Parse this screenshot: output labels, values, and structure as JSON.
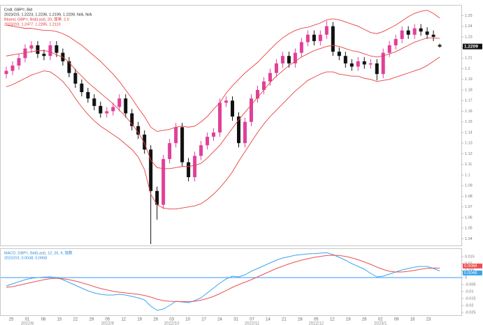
{
  "chart_data": [
    {
      "type": "candlestick",
      "legend_lines": [
        {
          "text": "Cndl, GBP=, Bid",
          "color": "#222222"
        },
        {
          "text": "2023/2/3, 1.2223, 1.2236, 1.2199, 1.2209, N/A, N/A",
          "color": "#222222"
        },
        {
          "text": "Bband, GBP=, Bid(Last), 20, 简单, 2.0",
          "color": "#e03030"
        },
        {
          "text": "2023/2/3, 1.2477, 1.2285, 1.2110",
          "color": "#e03030"
        }
      ],
      "up_color": "#e0409a",
      "down_color": "#111111",
      "open": [
        1.195,
        1.198,
        1.203,
        1.21,
        1.219,
        1.222,
        1.214,
        1.212,
        1.222,
        1.215,
        1.207,
        1.196,
        1.186,
        1.178,
        1.172,
        1.165,
        1.158,
        1.16,
        1.164,
        1.172,
        1.158,
        1.146,
        1.138,
        1.124,
        1.085,
        1.072,
        1.115,
        1.13,
        1.145,
        1.112,
        1.098,
        1.118,
        1.128,
        1.136,
        1.14,
        1.168,
        1.17,
        1.155,
        1.13,
        1.15,
        1.172,
        1.18,
        1.188,
        1.196,
        1.205,
        1.212,
        1.205,
        1.215,
        1.225,
        1.232,
        1.226,
        1.232,
        1.24,
        1.216,
        1.212,
        1.205,
        1.202,
        1.207,
        1.204,
        1.205,
        1.195,
        1.215,
        1.222,
        1.228,
        1.236,
        1.232,
        1.238,
        1.235,
        1.232,
        1.2223
      ],
      "high": [
        1.202,
        1.207,
        1.214,
        1.223,
        1.226,
        1.226,
        1.218,
        1.226,
        1.226,
        1.219,
        1.211,
        1.2,
        1.19,
        1.182,
        1.176,
        1.169,
        1.164,
        1.168,
        1.176,
        1.176,
        1.162,
        1.15,
        1.142,
        1.128,
        1.089,
        1.119,
        1.134,
        1.149,
        1.149,
        1.116,
        1.122,
        1.132,
        1.14,
        1.144,
        1.172,
        1.174,
        1.174,
        1.159,
        1.154,
        1.176,
        1.184,
        1.192,
        1.2,
        1.209,
        1.216,
        1.216,
        1.219,
        1.229,
        1.236,
        1.236,
        1.236,
        1.245,
        1.244,
        1.22,
        1.216,
        1.209,
        1.211,
        1.211,
        1.209,
        1.209,
        1.219,
        1.226,
        1.232,
        1.24,
        1.24,
        1.242,
        1.242,
        1.239,
        1.236,
        1.2236
      ],
      "low": [
        1.191,
        1.194,
        1.199,
        1.206,
        1.215,
        1.21,
        1.208,
        1.208,
        1.211,
        1.203,
        1.192,
        1.182,
        1.174,
        1.168,
        1.161,
        1.154,
        1.154,
        1.156,
        1.16,
        1.154,
        1.142,
        1.134,
        1.12,
        1.035,
        1.058,
        1.068,
        1.111,
        1.126,
        1.108,
        1.094,
        1.094,
        1.114,
        1.124,
        1.132,
        1.136,
        1.164,
        1.151,
        1.126,
        1.126,
        1.146,
        1.168,
        1.176,
        1.184,
        1.192,
        1.201,
        1.201,
        1.201,
        1.211,
        1.221,
        1.222,
        1.222,
        1.228,
        1.212,
        1.208,
        1.201,
        1.198,
        1.198,
        1.2,
        1.2,
        1.189,
        1.191,
        1.211,
        1.218,
        1.224,
        1.228,
        1.228,
        1.231,
        1.228,
        1.226,
        1.2199
      ],
      "close": [
        1.198,
        1.203,
        1.21,
        1.219,
        1.222,
        1.214,
        1.212,
        1.222,
        1.215,
        1.207,
        1.196,
        1.186,
        1.178,
        1.172,
        1.165,
        1.158,
        1.16,
        1.164,
        1.172,
        1.158,
        1.146,
        1.138,
        1.124,
        1.085,
        1.072,
        1.115,
        1.13,
        1.145,
        1.112,
        1.098,
        1.118,
        1.128,
        1.136,
        1.14,
        1.168,
        1.17,
        1.155,
        1.13,
        1.15,
        1.172,
        1.18,
        1.188,
        1.196,
        1.205,
        1.212,
        1.205,
        1.215,
        1.225,
        1.232,
        1.226,
        1.232,
        1.24,
        1.216,
        1.212,
        1.205,
        1.202,
        1.207,
        1.204,
        1.205,
        1.195,
        1.215,
        1.222,
        1.228,
        1.236,
        1.232,
        1.238,
        1.235,
        1.232,
        1.23,
        1.2209
      ],
      "bands": [
        {
          "color": "#e84040",
          "values": [
            1.241,
            1.24,
            1.239,
            1.238,
            1.238,
            1.237,
            1.236,
            1.236,
            1.235,
            1.233,
            1.23,
            1.226,
            1.222,
            1.217,
            1.212,
            1.207,
            1.201,
            1.195,
            1.188,
            1.18,
            1.172,
            1.163,
            1.155,
            1.145,
            1.141,
            1.142,
            1.143,
            1.145,
            1.146,
            1.145,
            1.146,
            1.15,
            1.155,
            1.162,
            1.168,
            1.177,
            1.184,
            1.19,
            1.196,
            1.201,
            1.206,
            1.212,
            1.218,
            1.224,
            1.229,
            1.233,
            1.236,
            1.238,
            1.239,
            1.241,
            1.243,
            1.246,
            1.247,
            1.246,
            1.244,
            1.242,
            1.24,
            1.237,
            1.234,
            1.233,
            1.235,
            1.238,
            1.241,
            1.245,
            1.249,
            1.252,
            1.254,
            1.255,
            1.252,
            1.2477
          ]
        },
        {
          "color": "#e84040",
          "values": [
            1.212,
            1.213,
            1.214,
            1.215,
            1.216,
            1.217,
            1.217,
            1.216,
            1.213,
            1.211,
            1.206,
            1.199,
            1.193,
            1.187,
            1.182,
            1.177,
            1.172,
            1.167,
            1.161,
            1.155,
            1.148,
            1.14,
            1.13,
            1.114,
            1.107,
            1.106,
            1.106,
            1.107,
            1.108,
            1.108,
            1.109,
            1.111,
            1.116,
            1.122,
            1.128,
            1.136,
            1.144,
            1.152,
            1.159,
            1.166,
            1.173,
            1.18,
            1.187,
            1.193,
            1.198,
            1.203,
            1.207,
            1.211,
            1.214,
            1.217,
            1.219,
            1.221,
            1.222,
            1.221,
            1.219,
            1.217,
            1.216,
            1.214,
            1.212,
            1.211,
            1.212,
            1.214,
            1.216,
            1.219,
            1.222,
            1.225,
            1.227,
            1.229,
            1.229,
            1.2285
          ]
        },
        {
          "color": "#e84040",
          "values": [
            1.183,
            1.185,
            1.188,
            1.191,
            1.194,
            1.196,
            1.198,
            1.197,
            1.193,
            1.188,
            1.181,
            1.172,
            1.164,
            1.157,
            1.151,
            1.146,
            1.142,
            1.138,
            1.134,
            1.129,
            1.124,
            1.117,
            1.105,
            1.082,
            1.072,
            1.069,
            1.068,
            1.068,
            1.069,
            1.07,
            1.071,
            1.073,
            1.077,
            1.082,
            1.088,
            1.095,
            1.103,
            1.113,
            1.122,
            1.131,
            1.14,
            1.148,
            1.155,
            1.161,
            1.167,
            1.173,
            1.179,
            1.184,
            1.189,
            1.192,
            1.195,
            1.197,
            1.197,
            1.195,
            1.194,
            1.193,
            1.193,
            1.191,
            1.19,
            1.188,
            1.189,
            1.19,
            1.192,
            1.194,
            1.196,
            1.198,
            1.2,
            1.203,
            1.207,
            1.211
          ]
        }
      ],
      "last_price_color": "#111111",
      "xlim": [
        -0.89,
        72.44
      ],
      "ylim": [
        1.0337,
        1.2594
      ],
      "yticks": [
        1.04,
        1.05,
        1.06,
        1.07,
        1.08,
        1.09,
        1.1,
        1.11,
        1.12,
        1.13,
        1.14,
        1.15,
        1.16,
        1.17,
        1.18,
        1.19,
        1.2,
        1.21,
        1.22,
        1.23,
        1.24,
        1.25
      ],
      "xticks": [
        {
          "value": 0.78,
          "label": "25"
        },
        {
          "value": 3.33,
          "label": "01"
        },
        {
          "value": 5.89,
          "label": "08"
        },
        {
          "value": 8.44,
          "label": "15"
        },
        {
          "value": 11,
          "label": "22"
        },
        {
          "value": 13.56,
          "label": "29"
        },
        {
          "value": 16.11,
          "label": "05"
        },
        {
          "value": 18.67,
          "label": "12"
        },
        {
          "value": 21.22,
          "label": "19"
        },
        {
          "value": 23.78,
          "label": "26"
        },
        {
          "value": 26.33,
          "label": "03"
        },
        {
          "value": 28.89,
          "label": "10"
        },
        {
          "value": 31.44,
          "label": "17"
        },
        {
          "value": 34,
          "label": "24"
        },
        {
          "value": 36.56,
          "label": "31"
        },
        {
          "value": 39.11,
          "label": "07"
        },
        {
          "value": 41.67,
          "label": "14"
        },
        {
          "value": 44.22,
          "label": "21"
        },
        {
          "value": 46.78,
          "label": "28"
        },
        {
          "value": 49.33,
          "label": "05"
        },
        {
          "value": 51.89,
          "label": "12"
        },
        {
          "value": 54.44,
          "label": "19"
        },
        {
          "value": 57,
          "label": "26"
        },
        {
          "value": 59.56,
          "label": "02"
        },
        {
          "value": 62.11,
          "label": "09"
        },
        {
          "value": 64.67,
          "label": "16"
        },
        {
          "value": 67.22,
          "label": "23"
        }
      ],
      "month_ticks": [
        {
          "value": 3.33,
          "label": "2022/8"
        },
        {
          "value": 16.11,
          "label": "2022/9"
        },
        {
          "value": 26.33,
          "label": "2022/10"
        },
        {
          "value": 39.11,
          "label": "2022/11"
        },
        {
          "value": 49.33,
          "label": "2022/12"
        },
        {
          "value": 59.56,
          "label": "2023/1"
        }
      ]
    },
    {
      "type": "line",
      "legend_lines": [
        {
          "text": "MACD, GBP=, Bid(Last), 12, 26, 9, 指数",
          "color": "#2a8ad8"
        },
        {
          "text": "2023/2/3, 0.0048, 0.0068",
          "color": "#2a8ad8"
        }
      ],
      "zero_line_color": "#3399ff",
      "series": [
        {
          "color": "#3ba4ee",
          "values": [
            -0.006,
            -0.0045,
            -0.003,
            -0.0015,
            -0.0005,
            0,
            0.0003,
            0.0005,
            0,
            -0.0015,
            -0.0035,
            -0.0055,
            -0.0075,
            -0.0095,
            -0.011,
            -0.012,
            -0.0125,
            -0.0125,
            -0.012,
            -0.0125,
            -0.0135,
            -0.0145,
            -0.016,
            -0.0205,
            -0.0235,
            -0.0225,
            -0.02,
            -0.017,
            -0.0175,
            -0.018,
            -0.0165,
            -0.0145,
            -0.011,
            -0.0075,
            -0.004,
            -0.001,
            0.001,
            0.0005,
            0.002,
            0.0045,
            0.0065,
            0.0085,
            0.0105,
            0.0125,
            0.014,
            0.015,
            0.016,
            0.0165,
            0.017,
            0.0172,
            0.0175,
            0.0178,
            0.0165,
            0.0145,
            0.0125,
            0.01,
            0.008,
            0.006,
            0.003,
            0.0005,
            0.001,
            0.0025,
            0.004,
            0.0055,
            0.0065,
            0.0075,
            0.008,
            0.008,
            0.0065,
            0.0048
          ]
        },
        {
          "color": "#ee5050",
          "values": [
            -0.007,
            -0.0065,
            -0.0055,
            -0.0045,
            -0.0035,
            -0.0025,
            -0.0015,
            -0.0008,
            -0.0005,
            -0.0008,
            -0.0015,
            -0.0025,
            -0.0037,
            -0.005,
            -0.0065,
            -0.0078,
            -0.0088,
            -0.0098,
            -0.0105,
            -0.011,
            -0.0115,
            -0.012,
            -0.0128,
            -0.014,
            -0.0155,
            -0.0165,
            -0.017,
            -0.0172,
            -0.0172,
            -0.0173,
            -0.017,
            -0.0162,
            -0.015,
            -0.0135,
            -0.0115,
            -0.0093,
            -0.007,
            -0.005,
            -0.0033,
            -0.0015,
            0.0005,
            0.0025,
            0.0045,
            0.0065,
            0.0082,
            0.0098,
            0.0112,
            0.0125,
            0.0135,
            0.0145,
            0.0152,
            0.0158,
            0.016,
            0.0158,
            0.0152,
            0.0142,
            0.0128,
            0.0112,
            0.0095,
            0.0075,
            0.0058,
            0.0045,
            0.004,
            0.004,
            0.0045,
            0.0052,
            0.006,
            0.0066,
            0.0068,
            0.0068
          ]
        }
      ],
      "xlim": [
        -0.89,
        72.44
      ],
      "ylim": [
        -0.027,
        0.0205
      ],
      "yticks": [
        -0.025,
        -0.02,
        -0.015,
        -0.01,
        -0.005,
        0,
        0.005,
        0.01,
        0.015
      ]
    }
  ]
}
